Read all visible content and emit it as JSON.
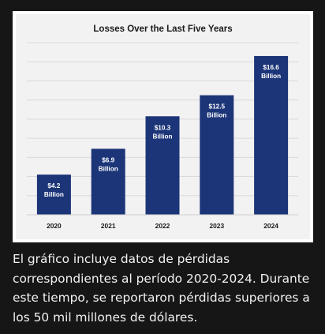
{
  "chart_data": {
    "type": "bar",
    "title": "Losses Over the Last Five Years",
    "categories": [
      "2020",
      "2021",
      "2022",
      "2023",
      "2024"
    ],
    "values": [
      4.2,
      6.9,
      10.3,
      12.5,
      16.6
    ],
    "data_labels": [
      {
        "value": "$4.2",
        "unit": "Billion"
      },
      {
        "value": "$6.9",
        "unit": "Billion"
      },
      {
        "value": "$10.3",
        "unit": "Billion"
      },
      {
        "value": "$12.5",
        "unit": "Billion"
      },
      {
        "value": "$16.6",
        "unit": "Billion"
      }
    ],
    "xlabel": "",
    "ylabel": "",
    "ylim": [
      0,
      18
    ],
    "grid": true,
    "bar_color": "#1c3578",
    "plot_background": "#f2f2f2"
  },
  "caption": "El gráfico incluye datos de pérdidas correspondientes al período 2020-2024. Durante este tiempo, se reportaron pérdidas superiores a los 50 mil millones de dólares."
}
